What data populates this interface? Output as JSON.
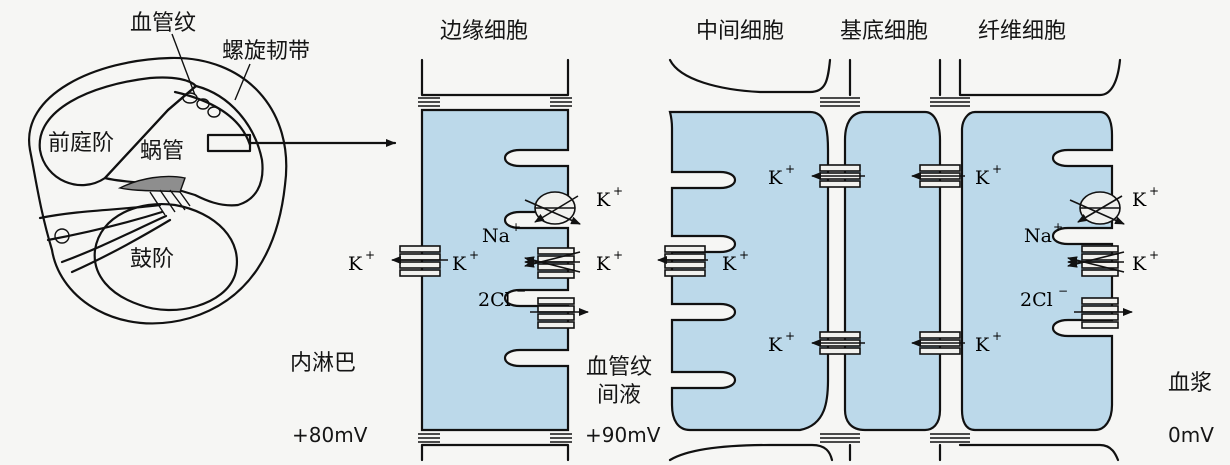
{
  "labels": {
    "vascular_stria": "血管纹",
    "spiral_ligament": "螺旋韧带",
    "scala_vestibuli": "前庭阶",
    "cochlear_duct": "蜗管",
    "scala_tympani": "鼓阶",
    "marginal_cell": "边缘细胞",
    "intermediate_cell": "中间细胞",
    "basal_cell": "基底细胞",
    "fibrocyte": "纤维细胞",
    "endolymph": "内淋巴",
    "intrastrial_fluid_line1": "血管纹",
    "intrastrial_fluid_line2": "间液",
    "plasma": "血浆",
    "endolymph_potential": "+80mV",
    "intrastrial_potential": "+90mV",
    "plasma_potential": "0mV"
  },
  "ions": {
    "k": "K",
    "na": "Na",
    "cl": "2Cl",
    "plus": "+",
    "minus": "−"
  },
  "colors": {
    "cell_fill": "#bcd9ea",
    "outline": "#111111",
    "background": "#f6f6f4"
  }
}
